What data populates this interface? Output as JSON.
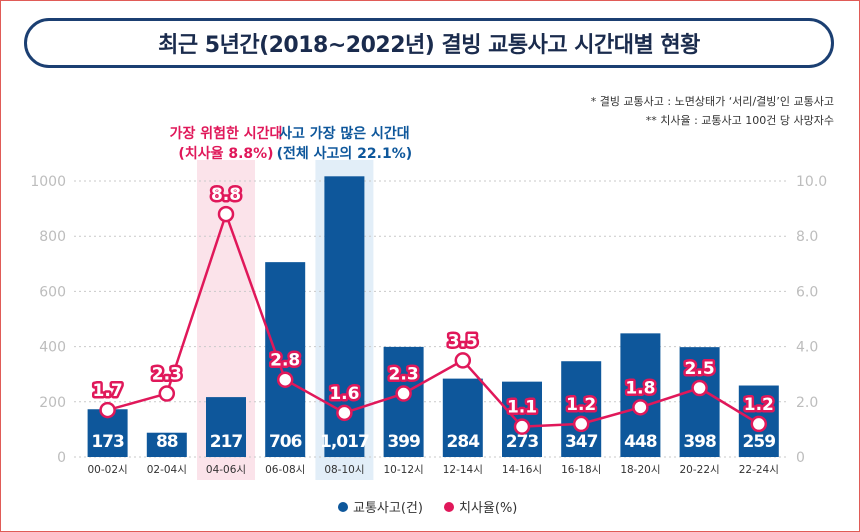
{
  "title": "최근 5년간(2018~2022년) 결빙 교통사고 시간대별 현황",
  "notes": [
    "* 결빙 교통사고 : 노면상태가 ‘서리/결빙’인 교통사고",
    "** 치사율 : 교통사고 100건 당 사망자수"
  ],
  "colors": {
    "bar": "#0e579b",
    "line": "#e0185a",
    "title_border": "#1b3f72",
    "highlight_pink": "#fbe3ea",
    "highlight_blue": "#e2eef8",
    "axis_text": "#bdbdbd"
  },
  "chart_data": {
    "type": "bar+line",
    "title": "최근 5년간(2018~2022년) 결빙 교통사고 시간대별 현황",
    "categories": [
      "00-02시",
      "02-04시",
      "04-06시",
      "06-08시",
      "08-10시",
      "10-12시",
      "12-14시",
      "14-16시",
      "16-18시",
      "18-20시",
      "20-22시",
      "22-24시"
    ],
    "series": [
      {
        "name": "교통사고(건)",
        "type": "bar",
        "axis": "left",
        "values": [
          173,
          88,
          217,
          706,
          1017,
          399,
          284,
          273,
          347,
          448,
          398,
          259
        ],
        "labels": [
          "173",
          "88",
          "217",
          "706",
          "1,017",
          "399",
          "284",
          "273",
          "347",
          "448",
          "398",
          "259"
        ]
      },
      {
        "name": "치사율(%)",
        "type": "line",
        "axis": "right",
        "values": [
          1.7,
          2.3,
          8.8,
          2.8,
          1.6,
          2.3,
          3.5,
          1.1,
          1.2,
          1.8,
          2.5,
          1.2
        ],
        "labels": [
          "1.7",
          "2.3",
          "8.8",
          "2.8",
          "1.6",
          "2.3",
          "3.5",
          "1.1",
          "1.2",
          "1.8",
          "2.5",
          "1.2"
        ]
      }
    ],
    "left_axis": {
      "ylim": [
        0,
        1000
      ],
      "ticks": [
        "0",
        "200",
        "400",
        "600",
        "800",
        "1000"
      ]
    },
    "right_axis": {
      "ylim": [
        0,
        10
      ],
      "ticks": [
        "0",
        "2.0",
        "4.0",
        "6.0",
        "8.0",
        "10.0"
      ]
    },
    "legend": [
      "교통사고(건)",
      "치사율(%)"
    ],
    "legend_position": "bottom-center",
    "highlights": [
      {
        "category_index": 2,
        "color": "pink",
        "lines": [
          "가장 위험한 시간대",
          "(치사율 8.8%)"
        ]
      },
      {
        "category_index": 4,
        "color": "blue",
        "lines": [
          "사고 가장 많은 시간대",
          "(전체 사고의 22.1%)"
        ]
      }
    ]
  }
}
